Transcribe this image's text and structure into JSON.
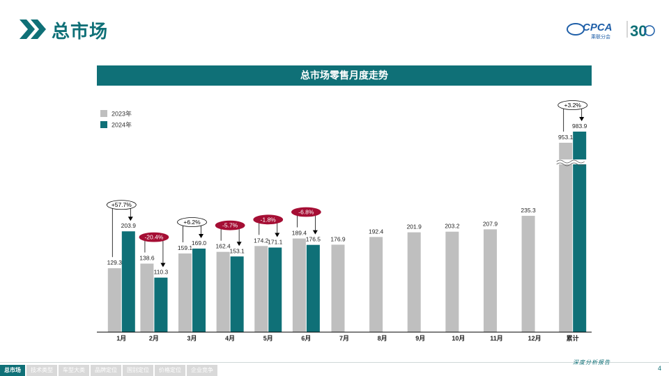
{
  "header": {
    "page_title": "总市场",
    "logo_text": "CPCA",
    "logo_sub": "乘联分会",
    "logo_30": "30"
  },
  "colors": {
    "accent": "#0f7077",
    "grey": "#bfbfbf",
    "negative": "#a50e34"
  },
  "chart_data": {
    "type": "bar",
    "title": "总市场零售月度走势",
    "categories": [
      "1月",
      "2月",
      "3月",
      "4月",
      "5月",
      "6月",
      "7月",
      "8月",
      "9月",
      "10月",
      "11月",
      "12月",
      "累计"
    ],
    "series": [
      {
        "name": "2023年",
        "color": "#bfbfbf",
        "values": [
          129.3,
          138.6,
          159.1,
          162.4,
          174.2,
          189.4,
          176.9,
          192.4,
          201.9,
          203.2,
          207.9,
          235.3,
          953.1
        ]
      },
      {
        "name": "2024年",
        "color": "#0f7077",
        "values": [
          203.9,
          110.3,
          169.0,
          153.1,
          171.1,
          176.5,
          null,
          null,
          null,
          null,
          null,
          null,
          983.9
        ]
      }
    ],
    "growth_labels": [
      {
        "category": "1月",
        "text": "+57.7%",
        "sign": "positive"
      },
      {
        "category": "2月",
        "text": "-20.4%",
        "sign": "negative"
      },
      {
        "category": "3月",
        "text": "+6.2%",
        "sign": "positive"
      },
      {
        "category": "4月",
        "text": "-5.7%",
        "sign": "negative"
      },
      {
        "category": "5月",
        "text": "-1.8%",
        "sign": "negative"
      },
      {
        "category": "6月",
        "text": "-6.8%",
        "sign": "negative"
      },
      {
        "category": "累计",
        "text": "+3.2%",
        "sign": "positive"
      }
    ],
    "axis_break_category": "累计",
    "legend_position": "top-left",
    "grid": false
  },
  "footer": {
    "tabs": [
      "总市场",
      "技术类型",
      "车型大类",
      "品牌定位",
      "国别定位",
      "价格定位",
      "企业竞争"
    ],
    "active_tab": 0,
    "slogan": "深度分析报告",
    "page_number": "4"
  }
}
